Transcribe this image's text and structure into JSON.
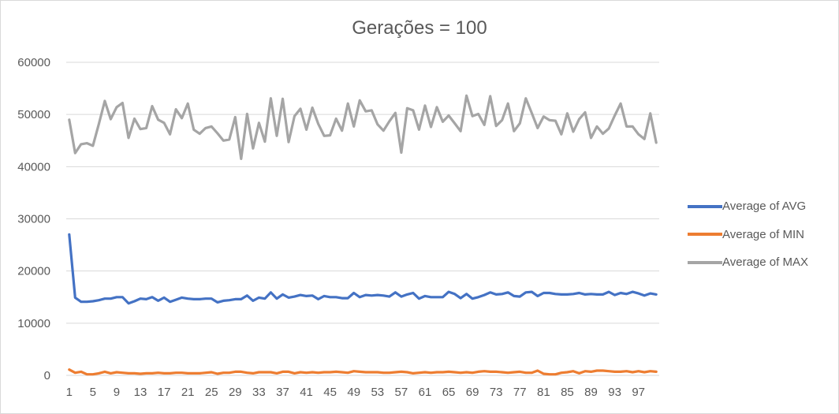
{
  "chart_data": {
    "type": "line",
    "title": "Gerações = 100",
    "xlabel": "",
    "ylabel": "",
    "ylim": [
      0,
      60000
    ],
    "yticks": [
      0,
      10000,
      20000,
      30000,
      40000,
      50000,
      60000
    ],
    "x": [
      1,
      2,
      3,
      4,
      5,
      6,
      7,
      8,
      9,
      10,
      11,
      12,
      13,
      14,
      15,
      16,
      17,
      18,
      19,
      20,
      21,
      22,
      23,
      24,
      25,
      26,
      27,
      28,
      29,
      30,
      31,
      32,
      33,
      34,
      35,
      36,
      37,
      38,
      39,
      40,
      41,
      42,
      43,
      44,
      45,
      46,
      47,
      48,
      49,
      50,
      51,
      52,
      53,
      54,
      55,
      56,
      57,
      58,
      59,
      60,
      61,
      62,
      63,
      64,
      65,
      66,
      67,
      68,
      69,
      70,
      71,
      72,
      73,
      74,
      75,
      76,
      77,
      78,
      79,
      80,
      81,
      82,
      83,
      84,
      85,
      86,
      87,
      88,
      89,
      90,
      91,
      92,
      93,
      94,
      95,
      96,
      97,
      98,
      99,
      100
    ],
    "xtick_labels": [
      "1",
      "5",
      "9",
      "13",
      "17",
      "21",
      "25",
      "29",
      "33",
      "37",
      "41",
      "45",
      "49",
      "53",
      "57",
      "61",
      "65",
      "69",
      "73",
      "77",
      "81",
      "85",
      "89",
      "93",
      "97"
    ],
    "grid": true,
    "legend_position": "right",
    "series": [
      {
        "name": "Average of AVG",
        "color": "#4472c4",
        "values": [
          27000,
          14900,
          14100,
          14100,
          14200,
          14400,
          14700,
          14700,
          15000,
          15000,
          13800,
          14200,
          14700,
          14600,
          15000,
          14300,
          14900,
          14100,
          14500,
          14900,
          14700,
          14600,
          14600,
          14700,
          14700,
          14000,
          14300,
          14400,
          14600,
          14600,
          15300,
          14300,
          14900,
          14700,
          15900,
          14700,
          15500,
          14900,
          15100,
          15400,
          15200,
          15300,
          14600,
          15200,
          15000,
          15000,
          14800,
          14800,
          15800,
          15000,
          15400,
          15300,
          15400,
          15300,
          15100,
          15900,
          15100,
          15500,
          15800,
          14700,
          15200,
          15000,
          15000,
          15000,
          16000,
          15600,
          14800,
          15600,
          14700,
          15000,
          15400,
          15900,
          15500,
          15600,
          15900,
          15200,
          15100,
          15900,
          16000,
          15200,
          15800,
          15800,
          15600,
          15500,
          15500,
          15600,
          15800,
          15500,
          15600,
          15500,
          15500,
          16000,
          15400,
          15800,
          15600,
          16000,
          15700,
          15300,
          15700,
          15500
        ]
      },
      {
        "name": "Average of MIN",
        "color": "#ed7d31",
        "values": [
          1100,
          500,
          700,
          200,
          200,
          400,
          700,
          400,
          600,
          500,
          400,
          400,
          300,
          400,
          400,
          500,
          400,
          400,
          500,
          500,
          400,
          400,
          400,
          500,
          600,
          300,
          500,
          500,
          700,
          700,
          500,
          400,
          600,
          600,
          600,
          400,
          700,
          700,
          400,
          600,
          500,
          600,
          500,
          600,
          600,
          700,
          600,
          500,
          800,
          700,
          600,
          600,
          600,
          500,
          500,
          600,
          700,
          600,
          400,
          500,
          600,
          500,
          600,
          600,
          700,
          600,
          500,
          600,
          500,
          700,
          800,
          700,
          700,
          600,
          500,
          600,
          700,
          500,
          500,
          900,
          300,
          200,
          200,
          500,
          600,
          800,
          400,
          800,
          700,
          900,
          900,
          800,
          700,
          700,
          800,
          600,
          800,
          600,
          800,
          700
        ]
      },
      {
        "name": "Average of MAX",
        "color": "#a5a5a5",
        "values": [
          49000,
          42600,
          44300,
          44500,
          44000,
          48200,
          52600,
          49100,
          51400,
          52200,
          45500,
          49200,
          47200,
          47400,
          51600,
          49000,
          48400,
          46200,
          51000,
          49300,
          52100,
          47100,
          46300,
          47400,
          47700,
          46400,
          45000,
          45200,
          49500,
          41500,
          50100,
          43500,
          48400,
          44800,
          53100,
          45900,
          53000,
          44700,
          49700,
          51100,
          47100,
          51300,
          48200,
          45900,
          46000,
          49200,
          46900,
          52100,
          47700,
          52700,
          50600,
          50800,
          48100,
          46900,
          48700,
          50300,
          42700,
          51200,
          50800,
          47100,
          51700,
          47600,
          51400,
          48600,
          49800,
          48300,
          46800,
          53600,
          49700,
          50100,
          48000,
          53500,
          47800,
          48900,
          52100,
          46800,
          48300,
          53100,
          50300,
          47400,
          49600,
          48900,
          48800,
          46200,
          50200,
          46700,
          49100,
          50400,
          45500,
          47700,
          46300,
          47300,
          49800,
          52100,
          47700,
          47700,
          46200,
          45300,
          50200,
          44600
        ]
      }
    ]
  }
}
